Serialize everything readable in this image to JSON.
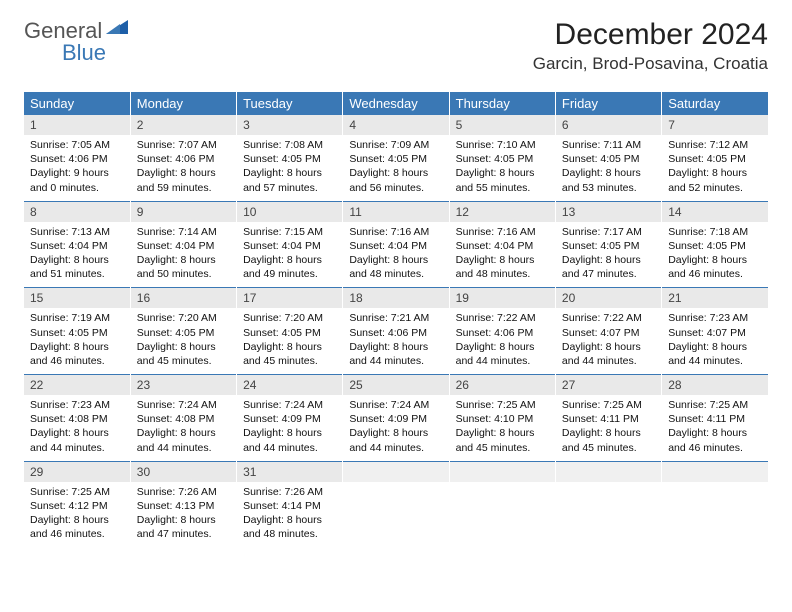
{
  "logo": {
    "general": "General",
    "blue": "Blue"
  },
  "title": "December 2024",
  "location": "Garcin, Brod-Posavina, Croatia",
  "colors": {
    "header_bg": "#3a78b5",
    "header_fg": "#ffffff",
    "daynum_bg": "#e9e9e9",
    "body_bg": "#ffffff",
    "sep": "#3a78b5"
  },
  "dow": [
    "Sunday",
    "Monday",
    "Tuesday",
    "Wednesday",
    "Thursday",
    "Friday",
    "Saturday"
  ],
  "weeks": [
    [
      {
        "n": "1",
        "sr": "Sunrise: 7:05 AM",
        "ss": "Sunset: 4:06 PM",
        "d1": "Daylight: 9 hours",
        "d2": "and 0 minutes."
      },
      {
        "n": "2",
        "sr": "Sunrise: 7:07 AM",
        "ss": "Sunset: 4:06 PM",
        "d1": "Daylight: 8 hours",
        "d2": "and 59 minutes."
      },
      {
        "n": "3",
        "sr": "Sunrise: 7:08 AM",
        "ss": "Sunset: 4:05 PM",
        "d1": "Daylight: 8 hours",
        "d2": "and 57 minutes."
      },
      {
        "n": "4",
        "sr": "Sunrise: 7:09 AM",
        "ss": "Sunset: 4:05 PM",
        "d1": "Daylight: 8 hours",
        "d2": "and 56 minutes."
      },
      {
        "n": "5",
        "sr": "Sunrise: 7:10 AM",
        "ss": "Sunset: 4:05 PM",
        "d1": "Daylight: 8 hours",
        "d2": "and 55 minutes."
      },
      {
        "n": "6",
        "sr": "Sunrise: 7:11 AM",
        "ss": "Sunset: 4:05 PM",
        "d1": "Daylight: 8 hours",
        "d2": "and 53 minutes."
      },
      {
        "n": "7",
        "sr": "Sunrise: 7:12 AM",
        "ss": "Sunset: 4:05 PM",
        "d1": "Daylight: 8 hours",
        "d2": "and 52 minutes."
      }
    ],
    [
      {
        "n": "8",
        "sr": "Sunrise: 7:13 AM",
        "ss": "Sunset: 4:04 PM",
        "d1": "Daylight: 8 hours",
        "d2": "and 51 minutes."
      },
      {
        "n": "9",
        "sr": "Sunrise: 7:14 AM",
        "ss": "Sunset: 4:04 PM",
        "d1": "Daylight: 8 hours",
        "d2": "and 50 minutes."
      },
      {
        "n": "10",
        "sr": "Sunrise: 7:15 AM",
        "ss": "Sunset: 4:04 PM",
        "d1": "Daylight: 8 hours",
        "d2": "and 49 minutes."
      },
      {
        "n": "11",
        "sr": "Sunrise: 7:16 AM",
        "ss": "Sunset: 4:04 PM",
        "d1": "Daylight: 8 hours",
        "d2": "and 48 minutes."
      },
      {
        "n": "12",
        "sr": "Sunrise: 7:16 AM",
        "ss": "Sunset: 4:04 PM",
        "d1": "Daylight: 8 hours",
        "d2": "and 48 minutes."
      },
      {
        "n": "13",
        "sr": "Sunrise: 7:17 AM",
        "ss": "Sunset: 4:05 PM",
        "d1": "Daylight: 8 hours",
        "d2": "and 47 minutes."
      },
      {
        "n": "14",
        "sr": "Sunrise: 7:18 AM",
        "ss": "Sunset: 4:05 PM",
        "d1": "Daylight: 8 hours",
        "d2": "and 46 minutes."
      }
    ],
    [
      {
        "n": "15",
        "sr": "Sunrise: 7:19 AM",
        "ss": "Sunset: 4:05 PM",
        "d1": "Daylight: 8 hours",
        "d2": "and 46 minutes."
      },
      {
        "n": "16",
        "sr": "Sunrise: 7:20 AM",
        "ss": "Sunset: 4:05 PM",
        "d1": "Daylight: 8 hours",
        "d2": "and 45 minutes."
      },
      {
        "n": "17",
        "sr": "Sunrise: 7:20 AM",
        "ss": "Sunset: 4:05 PM",
        "d1": "Daylight: 8 hours",
        "d2": "and 45 minutes."
      },
      {
        "n": "18",
        "sr": "Sunrise: 7:21 AM",
        "ss": "Sunset: 4:06 PM",
        "d1": "Daylight: 8 hours",
        "d2": "and 44 minutes."
      },
      {
        "n": "19",
        "sr": "Sunrise: 7:22 AM",
        "ss": "Sunset: 4:06 PM",
        "d1": "Daylight: 8 hours",
        "d2": "and 44 minutes."
      },
      {
        "n": "20",
        "sr": "Sunrise: 7:22 AM",
        "ss": "Sunset: 4:07 PM",
        "d1": "Daylight: 8 hours",
        "d2": "and 44 minutes."
      },
      {
        "n": "21",
        "sr": "Sunrise: 7:23 AM",
        "ss": "Sunset: 4:07 PM",
        "d1": "Daylight: 8 hours",
        "d2": "and 44 minutes."
      }
    ],
    [
      {
        "n": "22",
        "sr": "Sunrise: 7:23 AM",
        "ss": "Sunset: 4:08 PM",
        "d1": "Daylight: 8 hours",
        "d2": "and 44 minutes."
      },
      {
        "n": "23",
        "sr": "Sunrise: 7:24 AM",
        "ss": "Sunset: 4:08 PM",
        "d1": "Daylight: 8 hours",
        "d2": "and 44 minutes."
      },
      {
        "n": "24",
        "sr": "Sunrise: 7:24 AM",
        "ss": "Sunset: 4:09 PM",
        "d1": "Daylight: 8 hours",
        "d2": "and 44 minutes."
      },
      {
        "n": "25",
        "sr": "Sunrise: 7:24 AM",
        "ss": "Sunset: 4:09 PM",
        "d1": "Daylight: 8 hours",
        "d2": "and 44 minutes."
      },
      {
        "n": "26",
        "sr": "Sunrise: 7:25 AM",
        "ss": "Sunset: 4:10 PM",
        "d1": "Daylight: 8 hours",
        "d2": "and 45 minutes."
      },
      {
        "n": "27",
        "sr": "Sunrise: 7:25 AM",
        "ss": "Sunset: 4:11 PM",
        "d1": "Daylight: 8 hours",
        "d2": "and 45 minutes."
      },
      {
        "n": "28",
        "sr": "Sunrise: 7:25 AM",
        "ss": "Sunset: 4:11 PM",
        "d1": "Daylight: 8 hours",
        "d2": "and 46 minutes."
      }
    ],
    [
      {
        "n": "29",
        "sr": "Sunrise: 7:25 AM",
        "ss": "Sunset: 4:12 PM",
        "d1": "Daylight: 8 hours",
        "d2": "and 46 minutes."
      },
      {
        "n": "30",
        "sr": "Sunrise: 7:26 AM",
        "ss": "Sunset: 4:13 PM",
        "d1": "Daylight: 8 hours",
        "d2": "and 47 minutes."
      },
      {
        "n": "31",
        "sr": "Sunrise: 7:26 AM",
        "ss": "Sunset: 4:14 PM",
        "d1": "Daylight: 8 hours",
        "d2": "and 48 minutes."
      },
      null,
      null,
      null,
      null
    ]
  ]
}
